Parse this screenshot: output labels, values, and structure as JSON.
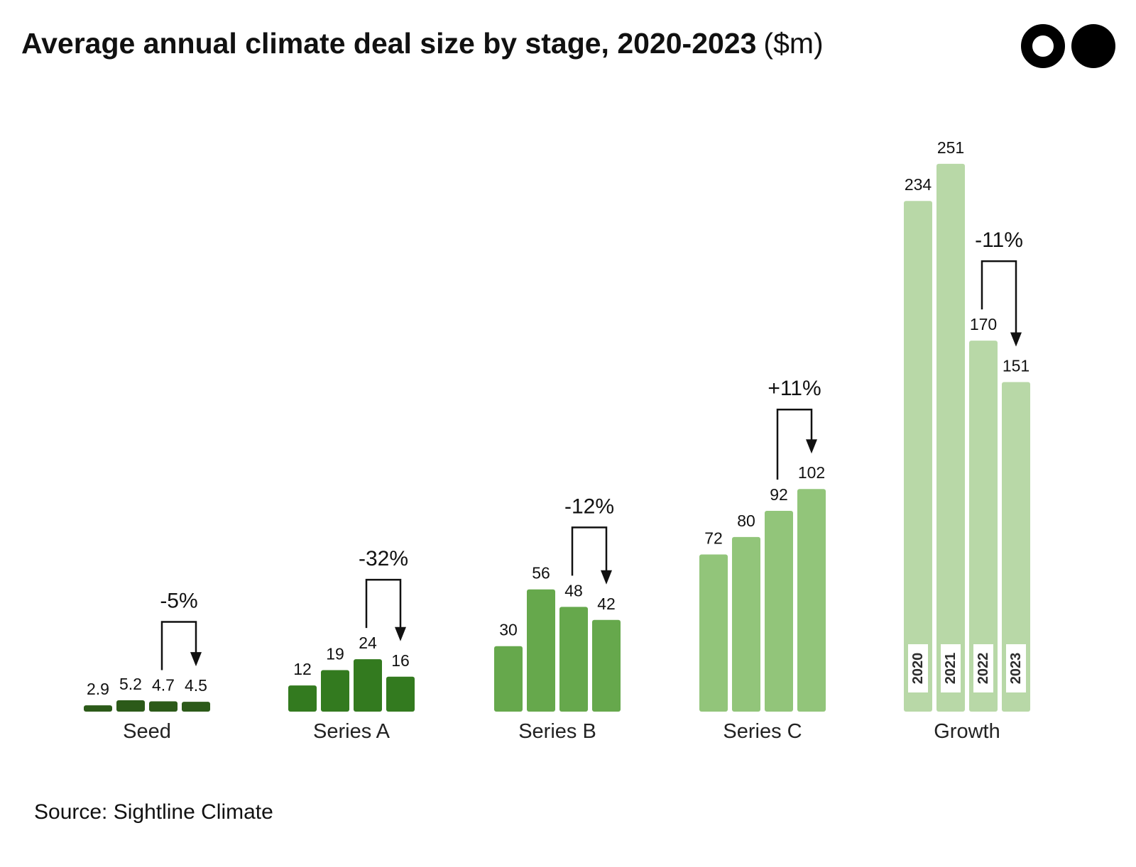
{
  "title": "Average annual climate deal size by stage, 2020-2023",
  "unit": "($m)",
  "source": "Source: Sightline Climate",
  "logo": "two-circle-logo",
  "chart_data": {
    "type": "bar",
    "categories": [
      "Seed",
      "Series A",
      "Series B",
      "Series C",
      "Growth"
    ],
    "years": [
      "2020",
      "2021",
      "2022",
      "2023"
    ],
    "values": [
      [
        "2.9",
        "5.2",
        "4.7",
        "4.5"
      ],
      [
        "12",
        "19",
        "24",
        "16"
      ],
      [
        "30",
        "56",
        "48",
        "42"
      ],
      [
        "72",
        "80",
        "92",
        "102"
      ],
      [
        "234",
        "251",
        "170",
        "151"
      ]
    ],
    "changes": [
      "-5%",
      "-32%",
      "-12%",
      "+11%",
      "-11%"
    ],
    "colors": [
      "#2c5a19",
      "#337a1f",
      "#66a84c",
      "#92c57a",
      "#b8d8a7"
    ],
    "year_labels_shown_on": "Growth",
    "grid": false,
    "legend": "none"
  }
}
